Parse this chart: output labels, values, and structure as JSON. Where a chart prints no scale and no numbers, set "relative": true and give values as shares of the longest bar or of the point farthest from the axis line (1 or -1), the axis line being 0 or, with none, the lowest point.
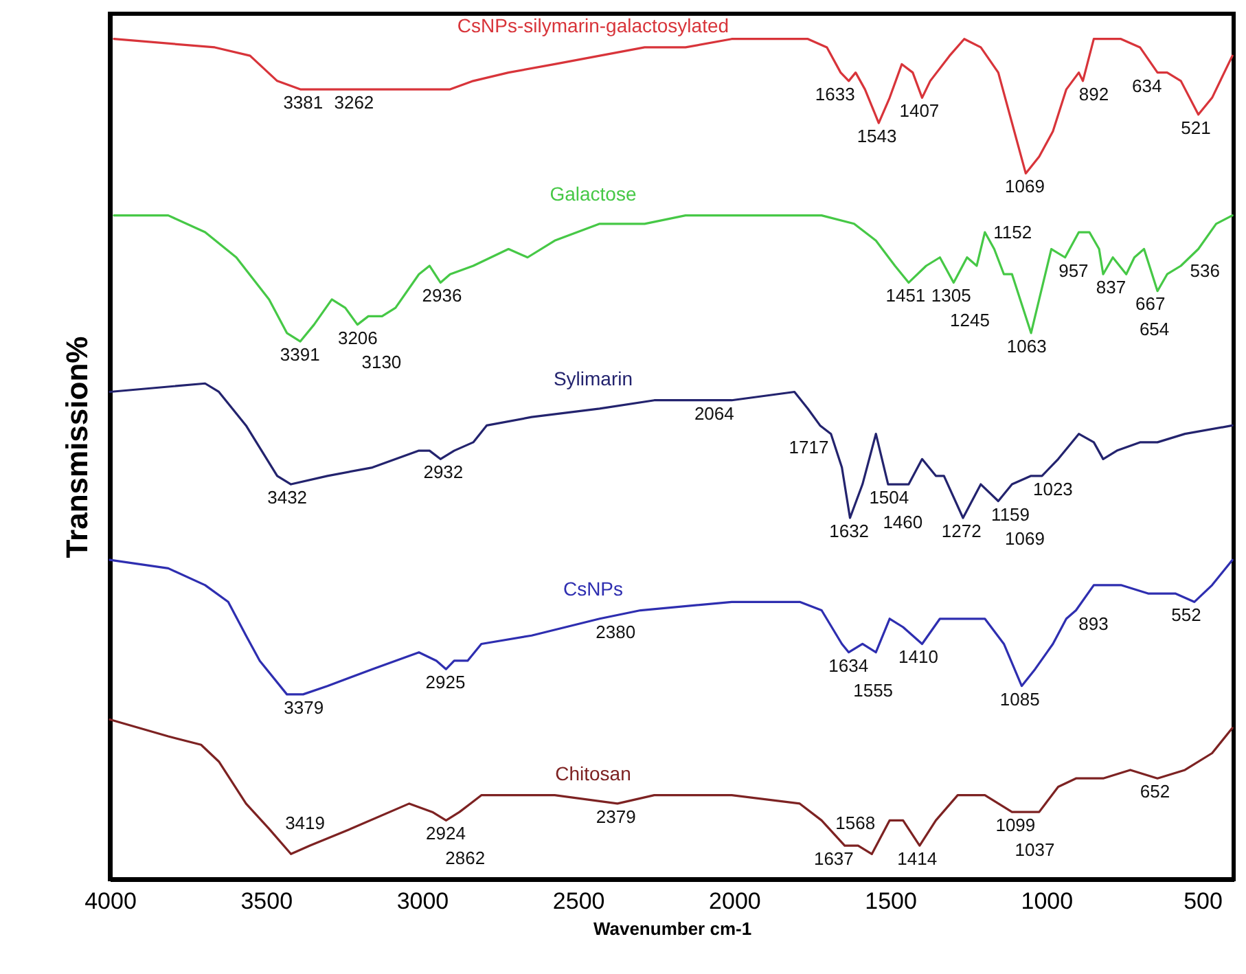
{
  "chart_data": {
    "type": "line",
    "relative": true,
    "xlabel": "Wavenumber cm-1",
    "ylabel": "Transmission%",
    "xlim": [
      4000,
      400
    ],
    "xticks": [
      4000,
      3500,
      3000,
      2500,
      2000,
      1500,
      1000,
      500
    ],
    "series": [
      {
        "name": "CsNPs-silymarin-galactosylated",
        "color": "#d8343a",
        "x": [
          3987,
          3664,
          3551,
          3464,
          3390,
          3303,
          3246,
          3159,
          3072,
          2984,
          2910,
          2836,
          2723,
          2575,
          2431,
          2287,
          2156,
          2008,
          1764,
          1703,
          1659,
          1633,
          1611,
          1581,
          1537,
          1502,
          1463,
          1428,
          1398,
          1372,
          1310,
          1263,
          1210,
          1154,
          1110,
          1066,
          1023,
          979,
          936,
          896,
          883,
          848,
          761,
          700,
          644,
          613,
          569,
          513,
          469,
          404
        ],
        "values": [
          1.0,
          0.99,
          0.98,
          0.95,
          0.94,
          0.94,
          0.94,
          0.94,
          0.94,
          0.94,
          0.94,
          0.95,
          0.96,
          0.97,
          0.98,
          0.99,
          0.99,
          1.0,
          1.0,
          0.99,
          0.96,
          0.95,
          0.96,
          0.94,
          0.9,
          0.93,
          0.97,
          0.96,
          0.93,
          0.95,
          0.98,
          1.0,
          0.99,
          0.96,
          0.9,
          0.84,
          0.86,
          0.89,
          0.94,
          0.96,
          0.95,
          1.0,
          1.0,
          0.99,
          0.96,
          0.96,
          0.95,
          0.91,
          0.93,
          0.98
        ]
      },
      {
        "name": "Galactose",
        "color": "#46c846",
        "x": [
          3987,
          3813,
          3695,
          3595,
          3490,
          3433,
          3390,
          3346,
          3289,
          3246,
          3207,
          3172,
          3128,
          3085,
          3010,
          2976,
          2941,
          2910,
          2836,
          2723,
          2662,
          2575,
          2431,
          2287,
          2156,
          1938,
          1720,
          1616,
          1546,
          1485,
          1441,
          1385,
          1341,
          1297,
          1254,
          1223,
          1197,
          1167,
          1136,
          1110,
          1049,
          1023,
          984,
          940,
          896,
          862,
          831,
          818,
          787,
          744,
          718,
          687,
          644,
          613,
          569,
          513,
          456,
          404
        ],
        "values": [
          0.79,
          0.79,
          0.77,
          0.74,
          0.69,
          0.65,
          0.64,
          0.66,
          0.69,
          0.68,
          0.66,
          0.67,
          0.67,
          0.68,
          0.72,
          0.73,
          0.71,
          0.72,
          0.73,
          0.75,
          0.74,
          0.76,
          0.78,
          0.78,
          0.79,
          0.79,
          0.79,
          0.78,
          0.76,
          0.73,
          0.71,
          0.73,
          0.74,
          0.71,
          0.74,
          0.73,
          0.77,
          0.75,
          0.72,
          0.72,
          0.65,
          0.69,
          0.75,
          0.74,
          0.77,
          0.77,
          0.75,
          0.72,
          0.74,
          0.72,
          0.74,
          0.75,
          0.7,
          0.72,
          0.73,
          0.75,
          0.78,
          0.79
        ]
      },
      {
        "name": "Sylimarin",
        "color": "#23236e",
        "x": [
          4000,
          3695,
          3651,
          3564,
          3464,
          3420,
          3303,
          3159,
          3010,
          2976,
          2941,
          2897,
          2836,
          2793,
          2649,
          2431,
          2256,
          2156,
          2008,
          1807,
          1764,
          1725,
          1690,
          1655,
          1629,
          1589,
          1546,
          1507,
          1472,
          1441,
          1398,
          1354,
          1328,
          1267,
          1210,
          1154,
          1110,
          1049,
          1014,
          962,
          896,
          848,
          818,
          774,
          700,
          644,
          556,
          404
        ],
        "values": [
          0.58,
          0.59,
          0.58,
          0.54,
          0.48,
          0.47,
          0.48,
          0.49,
          0.51,
          0.51,
          0.5,
          0.51,
          0.52,
          0.54,
          0.55,
          0.56,
          0.57,
          0.57,
          0.57,
          0.58,
          0.56,
          0.54,
          0.53,
          0.49,
          0.43,
          0.47,
          0.53,
          0.47,
          0.47,
          0.47,
          0.5,
          0.48,
          0.48,
          0.43,
          0.47,
          0.45,
          0.47,
          0.48,
          0.48,
          0.5,
          0.53,
          0.52,
          0.5,
          0.51,
          0.52,
          0.52,
          0.53,
          0.54
        ]
      },
      {
        "name": "CsNPs",
        "color": "#2e2eb0",
        "x": [
          4000,
          3813,
          3695,
          3621,
          3564,
          3520,
          3433,
          3381,
          3303,
          3159,
          3010,
          2954,
          2923,
          2897,
          2854,
          2810,
          2649,
          2431,
          2300,
          2008,
          1790,
          1720,
          1655,
          1633,
          1589,
          1546,
          1502,
          1459,
          1398,
          1341,
          1284,
          1241,
          1197,
          1136,
          1079,
          1036,
          979,
          936,
          905,
          848,
          761,
          674,
          587,
          526,
          469,
          404
        ],
        "values": [
          0.38,
          0.37,
          0.35,
          0.33,
          0.29,
          0.26,
          0.22,
          0.22,
          0.23,
          0.25,
          0.27,
          0.26,
          0.25,
          0.26,
          0.26,
          0.28,
          0.29,
          0.31,
          0.32,
          0.33,
          0.33,
          0.32,
          0.28,
          0.27,
          0.28,
          0.27,
          0.31,
          0.3,
          0.28,
          0.31,
          0.31,
          0.31,
          0.31,
          0.28,
          0.23,
          0.25,
          0.28,
          0.31,
          0.32,
          0.35,
          0.35,
          0.34,
          0.34,
          0.33,
          0.35,
          0.38
        ]
      },
      {
        "name": "Chitosan",
        "color": "#7d2222",
        "x": [
          4000,
          3813,
          3708,
          3651,
          3564,
          3490,
          3420,
          3359,
          3228,
          3041,
          2967,
          2923,
          2880,
          2845,
          2810,
          2723,
          2575,
          2374,
          2256,
          2008,
          1790,
          1720,
          1646,
          1603,
          1559,
          1502,
          1459,
          1406,
          1354,
          1284,
          1197,
          1110,
          1023,
          962,
          905,
          818,
          731,
          644,
          556,
          469,
          404
        ],
        "values": [
          0.19,
          0.17,
          0.16,
          0.14,
          0.09,
          0.06,
          0.03,
          0.04,
          0.06,
          0.09,
          0.08,
          0.07,
          0.08,
          0.09,
          0.1,
          0.1,
          0.1,
          0.09,
          0.1,
          0.1,
          0.09,
          0.07,
          0.04,
          0.04,
          0.03,
          0.07,
          0.07,
          0.04,
          0.07,
          0.1,
          0.1,
          0.08,
          0.08,
          0.11,
          0.12,
          0.12,
          0.13,
          0.12,
          0.13,
          0.15,
          0.18
        ]
      }
    ],
    "annotations": [
      {
        "text": "3381",
        "x": 3381,
        "y": 0.94
      },
      {
        "text": "3262",
        "x": 3262,
        "y": 0.94
      },
      {
        "text": "1633",
        "x": 1633,
        "y": 0.95
      },
      {
        "text": "1543",
        "x": 1543,
        "y": 0.9
      },
      {
        "text": "1407",
        "x": 1407,
        "y": 0.93
      },
      {
        "text": "1069",
        "x": 1069,
        "y": 0.84
      },
      {
        "text": "892",
        "x": 892,
        "y": 0.95
      },
      {
        "text": "634",
        "x": 634,
        "y": 0.96
      },
      {
        "text": "521",
        "x": 521,
        "y": 0.91
      },
      {
        "text": "3391",
        "x": 3391,
        "y": 0.64
      },
      {
        "text": "3206",
        "x": 3206,
        "y": 0.66
      },
      {
        "text": "3130",
        "x": 3130,
        "y": 0.67
      },
      {
        "text": "2936",
        "x": 2936,
        "y": 0.71
      },
      {
        "text": "1451",
        "x": 1451,
        "y": 0.71
      },
      {
        "text": "1305",
        "x": 1305,
        "y": 0.71
      },
      {
        "text": "1245",
        "x": 1245,
        "y": 0.73
      },
      {
        "text": "1152",
        "x": 1152,
        "y": 0.72
      },
      {
        "text": "1063",
        "x": 1063,
        "y": 0.65
      },
      {
        "text": "957",
        "x": 957,
        "y": 0.74
      },
      {
        "text": "837",
        "x": 837,
        "y": 0.75
      },
      {
        "text": "667",
        "x": 667,
        "y": 0.72
      },
      {
        "text": "654",
        "x": 654,
        "y": 0.7
      },
      {
        "text": "536",
        "x": 536,
        "y": 0.75
      },
      {
        "text": "3432",
        "x": 3432,
        "y": 0.47
      },
      {
        "text": "2932",
        "x": 2932,
        "y": 0.5
      },
      {
        "text": "2064",
        "x": 2064,
        "y": 0.57
      },
      {
        "text": "1717",
        "x": 1717,
        "y": 0.53
      },
      {
        "text": "1632",
        "x": 1632,
        "y": 0.43
      },
      {
        "text": "1504",
        "x": 1504,
        "y": 0.47
      },
      {
        "text": "1460",
        "x": 1460,
        "y": 0.47
      },
      {
        "text": "1272",
        "x": 1272,
        "y": 0.43
      },
      {
        "text": "1159",
        "x": 1159,
        "y": 0.45
      },
      {
        "text": "1069",
        "x": 1069,
        "y": 0.48
      },
      {
        "text": "1023",
        "x": 1023,
        "y": 0.48
      },
      {
        "text": "3379",
        "x": 3379,
        "y": 0.22
      },
      {
        "text": "2925",
        "x": 2925,
        "y": 0.25
      },
      {
        "text": "2380",
        "x": 2380,
        "y": 0.31
      },
      {
        "text": "1634",
        "x": 1634,
        "y": 0.27
      },
      {
        "text": "1555",
        "x": 1555,
        "y": 0.27
      },
      {
        "text": "1410",
        "x": 1410,
        "y": 0.28
      },
      {
        "text": "1085",
        "x": 1085,
        "y": 0.23
      },
      {
        "text": "893",
        "x": 893,
        "y": 0.32
      },
      {
        "text": "552",
        "x": 552,
        "y": 0.33
      },
      {
        "text": "3419",
        "x": 3419,
        "y": 0.03
      },
      {
        "text": "2924",
        "x": 2924,
        "y": 0.07
      },
      {
        "text": "2862",
        "x": 2862,
        "y": 0.08
      },
      {
        "text": "2379",
        "x": 2379,
        "y": 0.09
      },
      {
        "text": "1637",
        "x": 1637,
        "y": 0.04
      },
      {
        "text": "1568",
        "x": 1568,
        "y": 0.03
      },
      {
        "text": "1414",
        "x": 1414,
        "y": 0.04
      },
      {
        "text": "1099",
        "x": 1099,
        "y": 0.08
      },
      {
        "text": "1037",
        "x": 1037,
        "y": 0.08
      },
      {
        "text": "652",
        "x": 652,
        "y": 0.12
      }
    ]
  }
}
